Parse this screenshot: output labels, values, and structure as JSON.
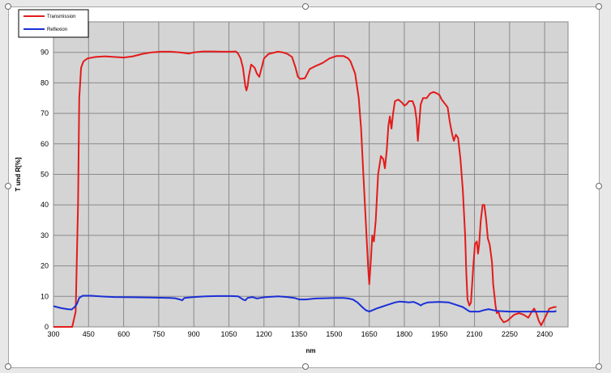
{
  "chart_data": {
    "type": "line",
    "xlabel": "nm",
    "ylabel": "T und R[%]",
    "xlim": [
      300,
      2500
    ],
    "ylim": [
      0,
      100
    ],
    "x_ticks": [
      300,
      450,
      600,
      750,
      900,
      1050,
      1200,
      1350,
      1500,
      1650,
      1800,
      1950,
      2100,
      2250,
      2400
    ],
    "y_ticks": [
      0,
      10,
      20,
      30,
      40,
      50,
      60,
      70,
      80,
      90
    ],
    "grid": true,
    "legend_position": "top-left",
    "series": [
      {
        "name": "Transmission",
        "color": "#e31b1b",
        "points": [
          [
            300,
            0
          ],
          [
            380,
            0
          ],
          [
            395,
            5
          ],
          [
            405,
            40
          ],
          [
            410,
            75
          ],
          [
            418,
            85
          ],
          [
            428,
            87
          ],
          [
            445,
            88
          ],
          [
            480,
            88.5
          ],
          [
            520,
            88.7
          ],
          [
            560,
            88.5
          ],
          [
            600,
            88.3
          ],
          [
            640,
            88.7
          ],
          [
            680,
            89.5
          ],
          [
            720,
            90
          ],
          [
            760,
            90.2
          ],
          [
            800,
            90.2
          ],
          [
            840,
            90
          ],
          [
            880,
            89.6
          ],
          [
            900,
            90
          ],
          [
            940,
            90.3
          ],
          [
            980,
            90.3
          ],
          [
            1020,
            90.2
          ],
          [
            1060,
            90.2
          ],
          [
            1080,
            90.3
          ],
          [
            1090,
            89.5
          ],
          [
            1100,
            88
          ],
          [
            1110,
            85
          ],
          [
            1120,
            79
          ],
          [
            1125,
            77.5
          ],
          [
            1130,
            79
          ],
          [
            1135,
            82
          ],
          [
            1145,
            86
          ],
          [
            1160,
            85
          ],
          [
            1170,
            83
          ],
          [
            1180,
            82
          ],
          [
            1190,
            85
          ],
          [
            1200,
            88
          ],
          [
            1220,
            89.5
          ],
          [
            1260,
            90.2
          ],
          [
            1280,
            90
          ],
          [
            1300,
            89.5
          ],
          [
            1320,
            88.5
          ],
          [
            1335,
            85
          ],
          [
            1345,
            82
          ],
          [
            1355,
            81.3
          ],
          [
            1375,
            81.5
          ],
          [
            1385,
            83
          ],
          [
            1395,
            84.5
          ],
          [
            1420,
            85.5
          ],
          [
            1450,
            86.5
          ],
          [
            1480,
            88
          ],
          [
            1510,
            88.8
          ],
          [
            1540,
            88.8
          ],
          [
            1560,
            88
          ],
          [
            1570,
            87
          ],
          [
            1590,
            83
          ],
          [
            1605,
            75
          ],
          [
            1615,
            65
          ],
          [
            1625,
            50
          ],
          [
            1635,
            35
          ],
          [
            1645,
            20
          ],
          [
            1650,
            14
          ],
          [
            1657,
            22
          ],
          [
            1663,
            30
          ],
          [
            1670,
            28
          ],
          [
            1678,
            35
          ],
          [
            1688,
            50
          ],
          [
            1700,
            56
          ],
          [
            1710,
            55
          ],
          [
            1717,
            52
          ],
          [
            1725,
            58
          ],
          [
            1732,
            66
          ],
          [
            1738,
            69
          ],
          [
            1745,
            65
          ],
          [
            1752,
            70
          ],
          [
            1760,
            74
          ],
          [
            1775,
            74.5
          ],
          [
            1790,
            73.5
          ],
          [
            1800,
            72.5
          ],
          [
            1810,
            73
          ],
          [
            1820,
            74
          ],
          [
            1835,
            74
          ],
          [
            1845,
            72
          ],
          [
            1852,
            68
          ],
          [
            1858,
            61
          ],
          [
            1862,
            65
          ],
          [
            1870,
            73
          ],
          [
            1880,
            75
          ],
          [
            1895,
            75
          ],
          [
            1910,
            76.5
          ],
          [
            1925,
            77
          ],
          [
            1940,
            76.5
          ],
          [
            1950,
            76
          ],
          [
            1960,
            74.5
          ],
          [
            1975,
            73
          ],
          [
            1985,
            72
          ],
          [
            1995,
            67
          ],
          [
            2005,
            63
          ],
          [
            2012,
            61
          ],
          [
            2020,
            63
          ],
          [
            2030,
            62
          ],
          [
            2040,
            55
          ],
          [
            2050,
            45
          ],
          [
            2060,
            30
          ],
          [
            2065,
            18
          ],
          [
            2070,
            9
          ],
          [
            2078,
            7
          ],
          [
            2085,
            8
          ],
          [
            2095,
            20
          ],
          [
            2102,
            27
          ],
          [
            2110,
            28
          ],
          [
            2115,
            24
          ],
          [
            2120,
            27
          ],
          [
            2127,
            35
          ],
          [
            2135,
            40
          ],
          [
            2142,
            40
          ],
          [
            2150,
            35
          ],
          [
            2157,
            29
          ],
          [
            2165,
            27
          ],
          [
            2175,
            21
          ],
          [
            2180,
            14
          ],
          [
            2190,
            7
          ],
          [
            2195,
            4.5
          ],
          [
            2202,
            5
          ],
          [
            2210,
            3
          ],
          [
            2225,
            1.5
          ],
          [
            2240,
            2
          ],
          [
            2255,
            3
          ],
          [
            2270,
            4
          ],
          [
            2290,
            4.5
          ],
          [
            2310,
            4
          ],
          [
            2330,
            3
          ],
          [
            2345,
            5
          ],
          [
            2355,
            6
          ],
          [
            2362,
            5
          ],
          [
            2375,
            2
          ],
          [
            2385,
            0.5
          ],
          [
            2395,
            2
          ],
          [
            2408,
            4
          ],
          [
            2420,
            6
          ],
          [
            2440,
            6.5
          ],
          [
            2450,
            6.5
          ]
        ]
      },
      {
        "name": "Reflexion",
        "color": "#1a2fd6",
        "points": [
          [
            300,
            6.8
          ],
          [
            330,
            6.2
          ],
          [
            360,
            5.8
          ],
          [
            378,
            5.7
          ],
          [
            390,
            6.5
          ],
          [
            400,
            7.5
          ],
          [
            410,
            9.5
          ],
          [
            425,
            10.2
          ],
          [
            460,
            10.2
          ],
          [
            500,
            10
          ],
          [
            560,
            9.8
          ],
          [
            640,
            9.7
          ],
          [
            720,
            9.6
          ],
          [
            800,
            9.5
          ],
          [
            820,
            9.4
          ],
          [
            840,
            9
          ],
          [
            850,
            8.7
          ],
          [
            860,
            9.5
          ],
          [
            900,
            9.8
          ],
          [
            950,
            10
          ],
          [
            1000,
            10.1
          ],
          [
            1060,
            10.1
          ],
          [
            1090,
            10
          ],
          [
            1100,
            9.5
          ],
          [
            1110,
            9
          ],
          [
            1120,
            8.7
          ],
          [
            1130,
            9.5
          ],
          [
            1150,
            9.8
          ],
          [
            1170,
            9.3
          ],
          [
            1185,
            9.5
          ],
          [
            1200,
            9.7
          ],
          [
            1260,
            10
          ],
          [
            1300,
            9.8
          ],
          [
            1330,
            9.5
          ],
          [
            1350,
            9
          ],
          [
            1380,
            9
          ],
          [
            1420,
            9.3
          ],
          [
            1460,
            9.4
          ],
          [
            1500,
            9.5
          ],
          [
            1540,
            9.5
          ],
          [
            1560,
            9.3
          ],
          [
            1580,
            9
          ],
          [
            1600,
            8
          ],
          [
            1620,
            6.5
          ],
          [
            1635,
            5.5
          ],
          [
            1650,
            5
          ],
          [
            1665,
            5.5
          ],
          [
            1680,
            6
          ],
          [
            1700,
            6.5
          ],
          [
            1720,
            7
          ],
          [
            1740,
            7.5
          ],
          [
            1760,
            8
          ],
          [
            1780,
            8.3
          ],
          [
            1800,
            8.2
          ],
          [
            1820,
            8
          ],
          [
            1840,
            8.2
          ],
          [
            1860,
            7.5
          ],
          [
            1870,
            7
          ],
          [
            1880,
            7.5
          ],
          [
            1900,
            8
          ],
          [
            1950,
            8.2
          ],
          [
            1990,
            8
          ],
          [
            2010,
            7.5
          ],
          [
            2030,
            7
          ],
          [
            2050,
            6.5
          ],
          [
            2070,
            5.5
          ],
          [
            2080,
            5
          ],
          [
            2100,
            5
          ],
          [
            2120,
            5
          ],
          [
            2140,
            5.5
          ],
          [
            2160,
            5.8
          ],
          [
            2180,
            5.5
          ],
          [
            2200,
            5.2
          ],
          [
            2250,
            5
          ],
          [
            2300,
            5
          ],
          [
            2350,
            5
          ],
          [
            2400,
            5
          ],
          [
            2440,
            5
          ],
          [
            2450,
            5.2
          ]
        ]
      }
    ]
  }
}
